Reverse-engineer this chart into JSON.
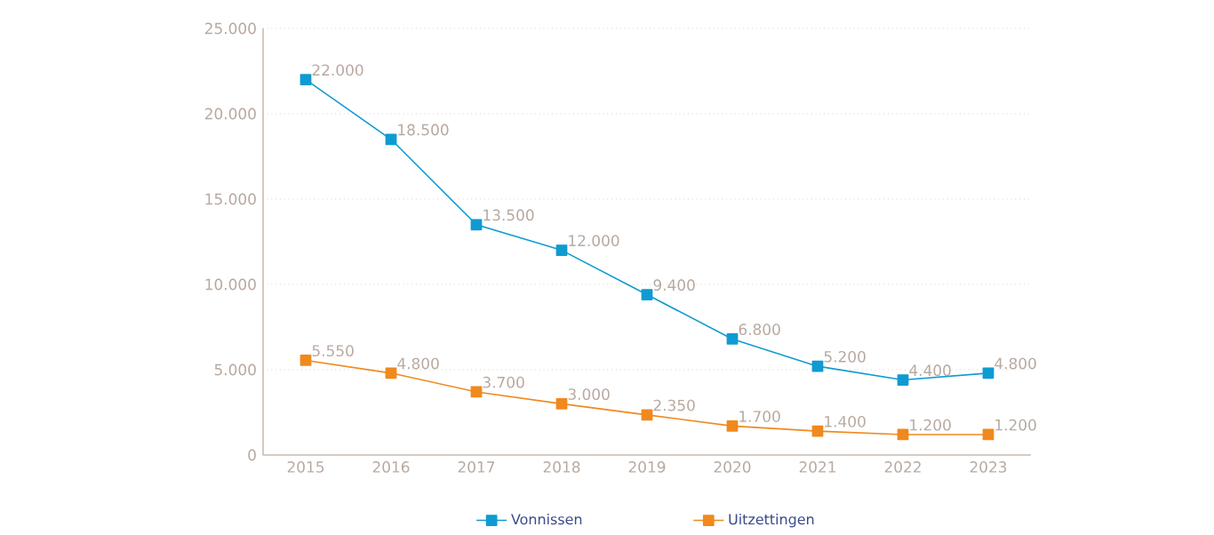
{
  "chart_data": {
    "type": "line",
    "categories": [
      "2015",
      "2016",
      "2017",
      "2018",
      "2019",
      "2020",
      "2021",
      "2022",
      "2023"
    ],
    "series": [
      {
        "name": "Vonnissen",
        "color": "#0f9bd1",
        "values": [
          22000,
          18500,
          13500,
          12000,
          9400,
          6800,
          5200,
          4400,
          4800
        ],
        "value_labels": [
          "22.000",
          "18.500",
          "13.500",
          "12.000",
          "9.400",
          "6.800",
          "5.200",
          "4.400",
          "4.800"
        ]
      },
      {
        "name": "Uitzettingen",
        "color": "#f0891e",
        "values": [
          5550,
          4800,
          3700,
          3000,
          2350,
          1700,
          1400,
          1200,
          1200
        ],
        "value_labels": [
          "5.550",
          "4.800",
          "3.700",
          "3.000",
          "2.350",
          "1.700",
          "1.400",
          "1.200",
          "1.200"
        ]
      }
    ],
    "ylim": [
      0,
      25000
    ],
    "yticks": [
      {
        "value": 0,
        "label": "0"
      },
      {
        "value": 5000,
        "label": "5.000"
      },
      {
        "value": 10000,
        "label": "10.000"
      },
      {
        "value": 15000,
        "label": "15.000"
      },
      {
        "value": 20000,
        "label": "20.000"
      },
      {
        "value": 25000,
        "label": "25.000"
      }
    ],
    "grid": "y",
    "legend": "bottom",
    "marker": "square",
    "line_style": "solid"
  }
}
